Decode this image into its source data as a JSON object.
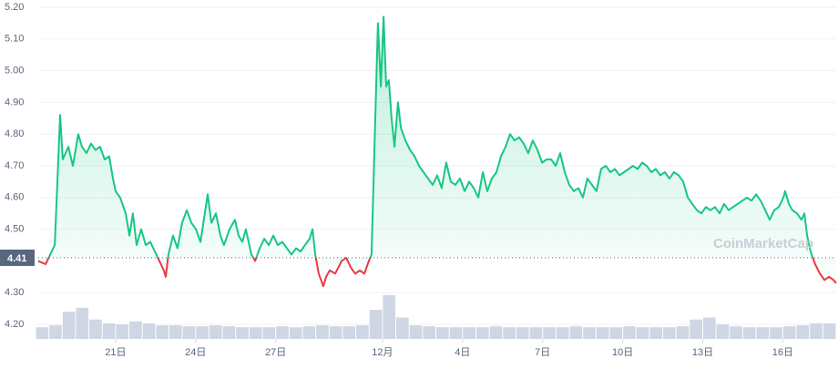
{
  "chart_data": {
    "type": "line",
    "watermark": "CoinMarketCap",
    "xlim": [
      0,
      30
    ],
    "ylim": [
      4.2,
      5.2
    ],
    "xticks": [
      {
        "value": 3,
        "label": "21日"
      },
      {
        "value": 6,
        "label": "24日"
      },
      {
        "value": 9,
        "label": "27日"
      },
      {
        "value": 13,
        "label": "12月"
      },
      {
        "value": 16,
        "label": "4日"
      },
      {
        "value": 19,
        "label": "7日"
      },
      {
        "value": 22,
        "label": "10日"
      },
      {
        "value": 25,
        "label": "13日"
      },
      {
        "value": 28,
        "label": "16日"
      }
    ],
    "yticks": [
      {
        "value": 4.2,
        "label": "4.20"
      },
      {
        "value": 4.3,
        "label": "4.30"
      },
      {
        "value": 4.5,
        "label": "4.50"
      },
      {
        "value": 4.6,
        "label": "4.60"
      },
      {
        "value": 4.7,
        "label": "4.70"
      },
      {
        "value": 4.8,
        "label": "4.80"
      },
      {
        "value": 4.9,
        "label": "4.90"
      },
      {
        "value": 5.0,
        "label": "5.00"
      },
      {
        "value": 5.1,
        "label": "5.10"
      },
      {
        "value": 5.2,
        "label": "5.20"
      }
    ],
    "grid": true,
    "baseline": {
      "value": 4.41
    },
    "series": [
      {
        "color": "#16c784",
        "down_color": "#ea3943",
        "x": [
          0.1,
          0.38,
          0.55,
          0.72,
          0.82,
          0.92,
          1.02,
          1.23,
          1.4,
          1.6,
          1.74,
          1.91,
          2.08,
          2.25,
          2.42,
          2.59,
          2.76,
          2.9,
          3.0,
          3.17,
          3.38,
          3.52,
          3.65,
          3.79,
          3.96,
          4.13,
          4.3,
          4.47,
          4.64,
          4.81,
          4.88,
          4.98,
          5.15,
          5.32,
          5.49,
          5.67,
          5.84,
          6.01,
          6.18,
          6.45,
          6.59,
          6.76,
          6.93,
          7.06,
          7.27,
          7.47,
          7.61,
          7.75,
          7.88,
          8.09,
          8.23,
          8.4,
          8.57,
          8.74,
          8.91,
          9.08,
          9.25,
          9.42,
          9.59,
          9.76,
          9.93,
          10.1,
          10.27,
          10.38,
          10.48,
          10.61,
          10.78,
          10.89,
          11.02,
          11.23,
          11.47,
          11.64,
          11.81,
          11.98,
          12.15,
          12.32,
          12.49,
          12.59,
          12.73,
          12.83,
          12.94,
          13.04,
          13.14,
          13.24,
          13.34,
          13.45,
          13.58,
          13.69,
          13.86,
          14.03,
          14.2,
          14.37,
          14.54,
          14.71,
          14.88,
          15.05,
          15.22,
          15.39,
          15.56,
          15.73,
          15.9,
          16.08,
          16.25,
          16.42,
          16.59,
          16.76,
          16.93,
          17.1,
          17.27,
          17.44,
          17.61,
          17.78,
          17.95,
          18.12,
          18.29,
          18.46,
          18.63,
          18.81,
          18.98,
          19.15,
          19.32,
          19.49,
          19.66,
          19.83,
          20.0,
          20.17,
          20.34,
          20.51,
          20.68,
          20.85,
          21.02,
          21.19,
          21.37,
          21.54,
          21.71,
          21.88,
          22.05,
          22.22,
          22.39,
          22.56,
          22.73,
          22.9,
          23.07,
          23.24,
          23.41,
          23.58,
          23.75,
          23.92,
          24.1,
          24.27,
          24.44,
          24.61,
          24.78,
          24.95,
          25.12,
          25.29,
          25.46,
          25.63,
          25.8,
          25.97,
          26.14,
          26.31,
          26.48,
          26.66,
          26.83,
          27.0,
          27.17,
          27.34,
          27.51,
          27.68,
          27.85,
          28.02,
          28.09,
          28.23,
          28.36,
          28.53,
          28.7,
          28.81,
          28.91,
          29.04,
          29.21,
          29.39,
          29.56,
          29.73,
          29.9,
          30.0
        ],
        "values": [
          4.4,
          4.39,
          4.42,
          4.45,
          4.65,
          4.86,
          4.72,
          4.76,
          4.7,
          4.8,
          4.76,
          4.74,
          4.77,
          4.75,
          4.76,
          4.72,
          4.73,
          4.66,
          4.62,
          4.6,
          4.55,
          4.48,
          4.55,
          4.45,
          4.5,
          4.45,
          4.46,
          4.43,
          4.4,
          4.37,
          4.35,
          4.42,
          4.48,
          4.44,
          4.52,
          4.56,
          4.52,
          4.5,
          4.46,
          4.61,
          4.52,
          4.55,
          4.48,
          4.45,
          4.5,
          4.53,
          4.48,
          4.46,
          4.5,
          4.42,
          4.4,
          4.44,
          4.47,
          4.45,
          4.48,
          4.45,
          4.46,
          4.44,
          4.42,
          4.44,
          4.43,
          4.45,
          4.47,
          4.5,
          4.42,
          4.36,
          4.32,
          4.35,
          4.37,
          4.36,
          4.4,
          4.41,
          4.38,
          4.36,
          4.37,
          4.36,
          4.4,
          4.42,
          4.85,
          5.15,
          4.95,
          5.17,
          4.95,
          4.97,
          4.85,
          4.76,
          4.9,
          4.82,
          4.78,
          4.75,
          4.73,
          4.7,
          4.68,
          4.66,
          4.64,
          4.67,
          4.63,
          4.71,
          4.65,
          4.64,
          4.66,
          4.62,
          4.65,
          4.63,
          4.6,
          4.68,
          4.62,
          4.66,
          4.68,
          4.73,
          4.76,
          4.8,
          4.78,
          4.79,
          4.77,
          4.74,
          4.78,
          4.75,
          4.71,
          4.72,
          4.72,
          4.7,
          4.74,
          4.68,
          4.64,
          4.62,
          4.63,
          4.6,
          4.66,
          4.64,
          4.62,
          4.69,
          4.7,
          4.68,
          4.69,
          4.67,
          4.68,
          4.69,
          4.7,
          4.69,
          4.71,
          4.7,
          4.68,
          4.69,
          4.67,
          4.68,
          4.66,
          4.68,
          4.67,
          4.65,
          4.6,
          4.58,
          4.56,
          4.55,
          4.57,
          4.56,
          4.57,
          4.55,
          4.58,
          4.56,
          4.57,
          4.58,
          4.59,
          4.6,
          4.59,
          4.61,
          4.59,
          4.56,
          4.53,
          4.56,
          4.57,
          4.6,
          4.62,
          4.58,
          4.56,
          4.55,
          4.53,
          4.55,
          4.48,
          4.43,
          4.39,
          4.36,
          4.34,
          4.35,
          4.34,
          4.33
        ]
      }
    ],
    "volume": {
      "color": "#cfd6e4",
      "x": [
        0.25,
        0.75,
        1.25,
        1.75,
        2.25,
        2.75,
        3.25,
        3.75,
        4.25,
        4.75,
        5.25,
        5.75,
        6.25,
        6.75,
        7.25,
        7.75,
        8.25,
        8.75,
        9.25,
        9.75,
        10.25,
        10.75,
        11.25,
        11.75,
        12.25,
        12.75,
        13.25,
        13.75,
        14.25,
        14.75,
        15.25,
        15.75,
        16.25,
        16.75,
        17.25,
        17.75,
        18.25,
        18.75,
        19.25,
        19.75,
        20.25,
        20.75,
        21.25,
        21.75,
        22.25,
        22.75,
        23.25,
        23.75,
        24.25,
        24.75,
        25.25,
        25.75,
        26.25,
        26.75,
        27.25,
        27.75,
        28.25,
        28.75,
        29.25,
        29.75
      ],
      "values": [
        12,
        14,
        28,
        32,
        20,
        16,
        15,
        18,
        16,
        14,
        14,
        13,
        13,
        14,
        13,
        12,
        12,
        12,
        13,
        12,
        13,
        14,
        13,
        13,
        14,
        30,
        45,
        22,
        14,
        13,
        12,
        12,
        12,
        12,
        13,
        12,
        12,
        12,
        12,
        12,
        13,
        12,
        12,
        12,
        13,
        12,
        12,
        12,
        13,
        20,
        22,
        15,
        13,
        12,
        12,
        12,
        13,
        14,
        16,
        16
      ]
    }
  }
}
